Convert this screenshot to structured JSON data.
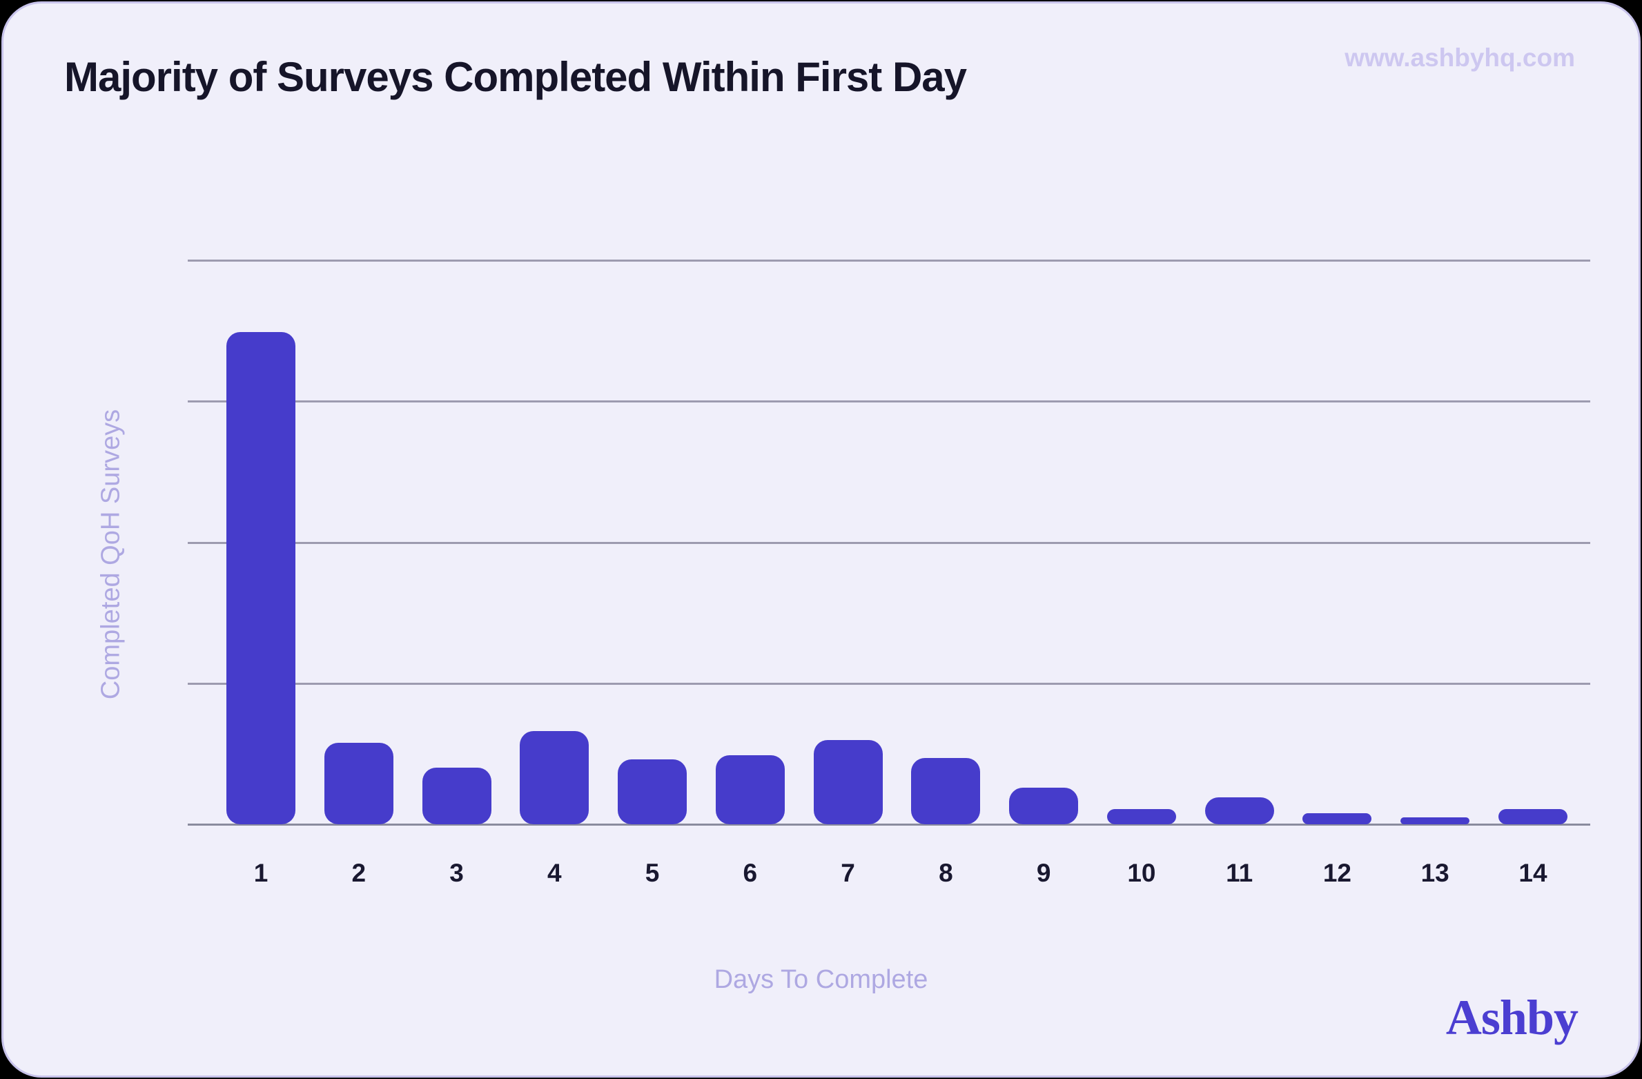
{
  "page": {
    "site_url": "www.ashbyhq.com",
    "brand_wordmark": "Ashby",
    "colors": {
      "outer_background": "#000000",
      "card_background": "#F0EFFA",
      "card_border": "#C7C2EA",
      "title_text": "#161529",
      "axis_label_text": "#AEA8E2",
      "url_text": "#CDC7F0",
      "brand_text": "#4B3ED1"
    }
  },
  "chart_data": {
    "type": "bar",
    "title": "Majority of Surveys Completed Within First Day",
    "xlabel": "Days To Complete",
    "ylabel": "Completed QoH Surveys",
    "categories": [
      "1",
      "2",
      "3",
      "4",
      "5",
      "6",
      "7",
      "8",
      "9",
      "10",
      "11",
      "12",
      "13",
      "14"
    ],
    "values": [
      349,
      58,
      40,
      66,
      46,
      49,
      60,
      47,
      26,
      11,
      19,
      8,
      5,
      11
    ],
    "note": "No y-axis tick labels shown; values estimated in relative units where horizontal gridlines sit at 100, 200, 300, 400",
    "ylim": [
      0,
      400
    ],
    "gridline_values": [
      100,
      200,
      300,
      400
    ],
    "grid": "horizontal",
    "legend": "none",
    "bar_color": "#463CCB",
    "gridline_color": "#9D9BAF",
    "axis_line_color": "#8A8B9E",
    "tick_text_color": "#191830"
  }
}
